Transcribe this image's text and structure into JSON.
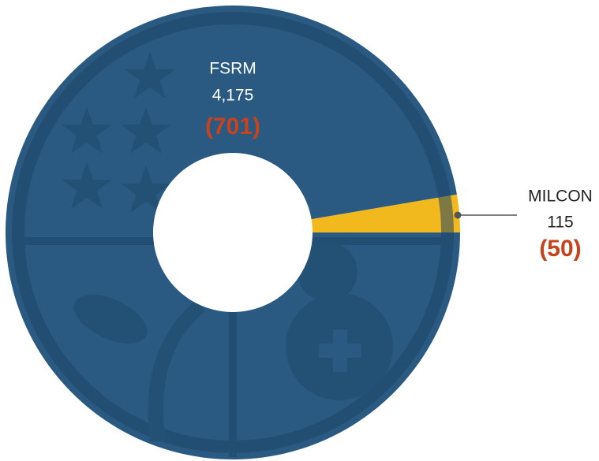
{
  "chart_data": {
    "type": "donut",
    "categories": [
      "FSRM",
      "MILCON"
    ],
    "values": [
      4175,
      115
    ],
    "value_labels": [
      "4,175",
      "115"
    ],
    "changes": [
      -701,
      -50
    ],
    "change_labels": [
      "(701)",
      "(50)"
    ],
    "colors": [
      "#2a5a82",
      "#f2b91e"
    ]
  }
}
